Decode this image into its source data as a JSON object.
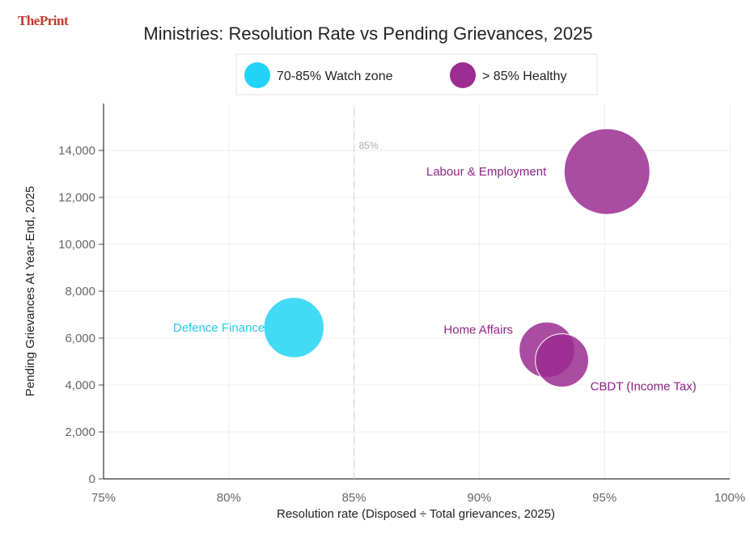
{
  "brand": {
    "logo_text": "ThePrint"
  },
  "chart_data": {
    "type": "scatter",
    "title": "Ministries: Resolution Rate vs Pending Grievances, 2025",
    "xlabel": "Resolution rate  (Disposed ÷ Total grievances, 2025)",
    "ylabel": "Pending Grievances At Year-End, 2025",
    "xlim": [
      75,
      100
    ],
    "ylim": [
      0,
      16000
    ],
    "x_ticks": [
      75,
      80,
      85,
      90,
      95,
      100
    ],
    "x_tick_labels": [
      "75%",
      "80%",
      "85%",
      "90%",
      "95%",
      "100%"
    ],
    "y_ticks": [
      0,
      2000,
      4000,
      6000,
      8000,
      10000,
      12000,
      14000
    ],
    "y_tick_labels": [
      "0",
      "2,000",
      "4,000",
      "6,000",
      "8,000",
      "10,000",
      "12,000",
      "14,000"
    ],
    "grid": true,
    "reference_line": {
      "x": 85,
      "label": "85%"
    },
    "legend": {
      "placement": "top",
      "entries": [
        {
          "label": "70-85%  Watch zone",
          "color": "#22d3f5"
        },
        {
          "label": "> 85%  Healthy",
          "color": "#9b2d91"
        }
      ]
    },
    "points": [
      {
        "name": "Defence Finance",
        "x": 82.6,
        "y": 6450,
        "size": 6450,
        "group": 0
      },
      {
        "name": "Labour & Employment",
        "x": 95.1,
        "y": 13100,
        "size": 13100,
        "group": 1
      },
      {
        "name": "Home Affairs",
        "x": 92.7,
        "y": 5500,
        "size": 5500,
        "group": 1
      },
      {
        "name": "CBDT (Income Tax)",
        "x": 93.3,
        "y": 5050,
        "size": 5050,
        "group": 1
      }
    ]
  }
}
